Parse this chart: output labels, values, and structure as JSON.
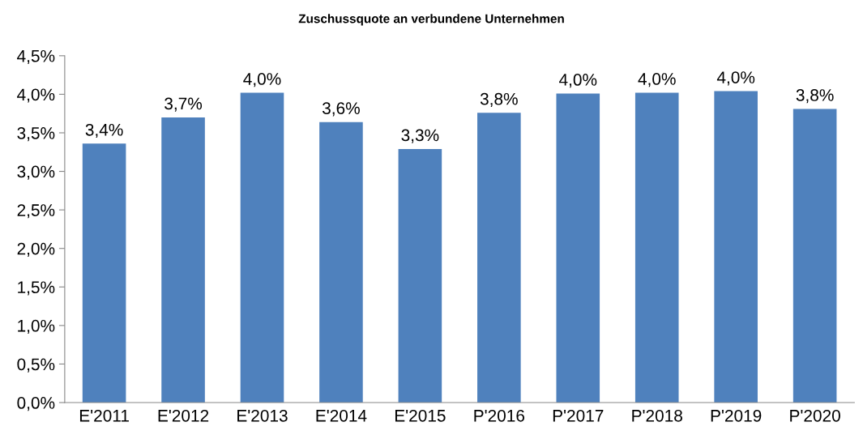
{
  "chart_data": {
    "type": "bar",
    "title": "Zuschussquote an verbundene Unternehmen",
    "categories": [
      "E'2011",
      "E'2012",
      "E'2013",
      "E'2014",
      "E'2015",
      "P'2016",
      "P'2017",
      "P'2018",
      "P'2019",
      "P'2020"
    ],
    "values": [
      3.36,
      3.7,
      4.02,
      3.64,
      3.29,
      3.76,
      4.01,
      4.02,
      4.04,
      3.81
    ],
    "value_labels": [
      "3,4%",
      "3,7%",
      "4,0%",
      "3,6%",
      "3,3%",
      "3,8%",
      "4,0%",
      "4,0%",
      "4,0%",
      "3,8%"
    ],
    "color": "#4f81bd",
    "ylim": [
      0,
      4.5
    ],
    "yticks": [
      {
        "value": 0,
        "label": "0,0%"
      },
      {
        "value": 0.5,
        "label": "0,5%"
      },
      {
        "value": 1,
        "label": "1,0%"
      },
      {
        "value": 1.5,
        "label": "1,5%"
      },
      {
        "value": 2,
        "label": "2,0%"
      },
      {
        "value": 2.5,
        "label": "2,5%"
      },
      {
        "value": 3,
        "label": "3,0%"
      },
      {
        "value": 3.5,
        "label": "3,5%"
      },
      {
        "value": 4,
        "label": "4,0%"
      },
      {
        "value": 4.5,
        "label": "4,5%"
      }
    ],
    "grid": false
  }
}
